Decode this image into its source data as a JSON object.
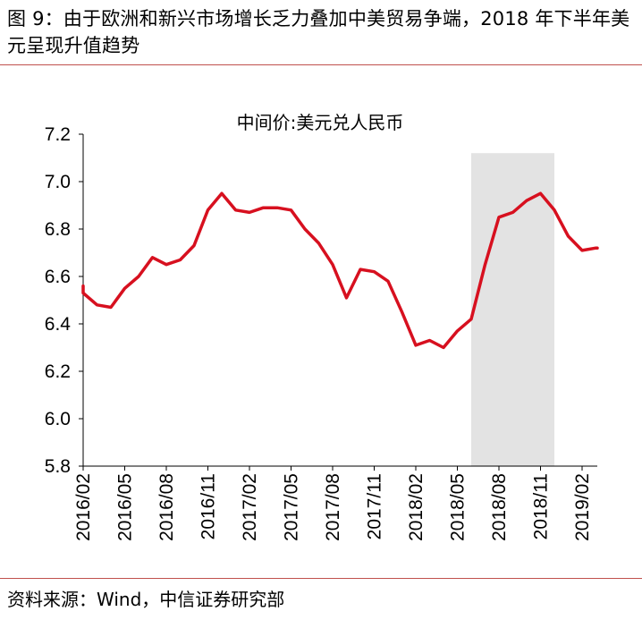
{
  "figure": {
    "title": "图 9：由于欧洲和新兴市场增长乏力叠加中美贸易争端，2018 年下半年美元呈现升值趋势",
    "source": "资料来源：Wind，中信证券研究部"
  },
  "colors": {
    "line": "#d7101f",
    "shade": "#e3e3e3",
    "rule": "#c0504d"
  },
  "chart_data": {
    "type": "line",
    "title": "中间价:美元兑人民币",
    "xlabel": "",
    "ylabel": "",
    "ylim": [
      5.8,
      7.2
    ],
    "yticks": [
      "5.8",
      "6.0",
      "6.2",
      "6.4",
      "6.6",
      "6.8",
      "7.0",
      "7.2"
    ],
    "xticks": [
      "2016/02",
      "2016/05",
      "2016/08",
      "2016/11",
      "2017/02",
      "2017/05",
      "2017/08",
      "2017/11",
      "2018/02",
      "2018/05",
      "2018/08",
      "2018/11",
      "2019/02"
    ],
    "x_start": "2016/02",
    "shaded_range": [
      "2018/06",
      "2018/12"
    ],
    "grid": false,
    "legend": "none",
    "series": [
      {
        "x": [
          "2016/01",
          "2016/02",
          "2016/03",
          "2016/04",
          "2016/05",
          "2016/06",
          "2016/07",
          "2016/08",
          "2016/09",
          "2016/10",
          "2016/11",
          "2016/12",
          "2017/01",
          "2017/02",
          "2017/03",
          "2017/04",
          "2017/05",
          "2017/06",
          "2017/07",
          "2017/08",
          "2017/09",
          "2017/10",
          "2017/11",
          "2017/12",
          "2018/01",
          "2018/02",
          "2018/03",
          "2018/04",
          "2018/05",
          "2018/06",
          "2018/07",
          "2018/08",
          "2018/09",
          "2018/10",
          "2018/11",
          "2018/12",
          "2019/01",
          "2019/02",
          "2019/03",
          "2019/04"
        ],
        "values": [
          6.56,
          6.53,
          6.48,
          6.47,
          6.55,
          6.6,
          6.68,
          6.65,
          6.67,
          6.73,
          6.88,
          6.95,
          6.88,
          6.87,
          6.89,
          6.89,
          6.88,
          6.8,
          6.74,
          6.65,
          6.51,
          6.63,
          6.62,
          6.58,
          6.45,
          6.31,
          6.33,
          6.3,
          6.37,
          6.42,
          6.65,
          6.85,
          6.87,
          6.92,
          6.95,
          6.88,
          6.77,
          6.71,
          6.72,
          6.72
        ]
      }
    ]
  }
}
